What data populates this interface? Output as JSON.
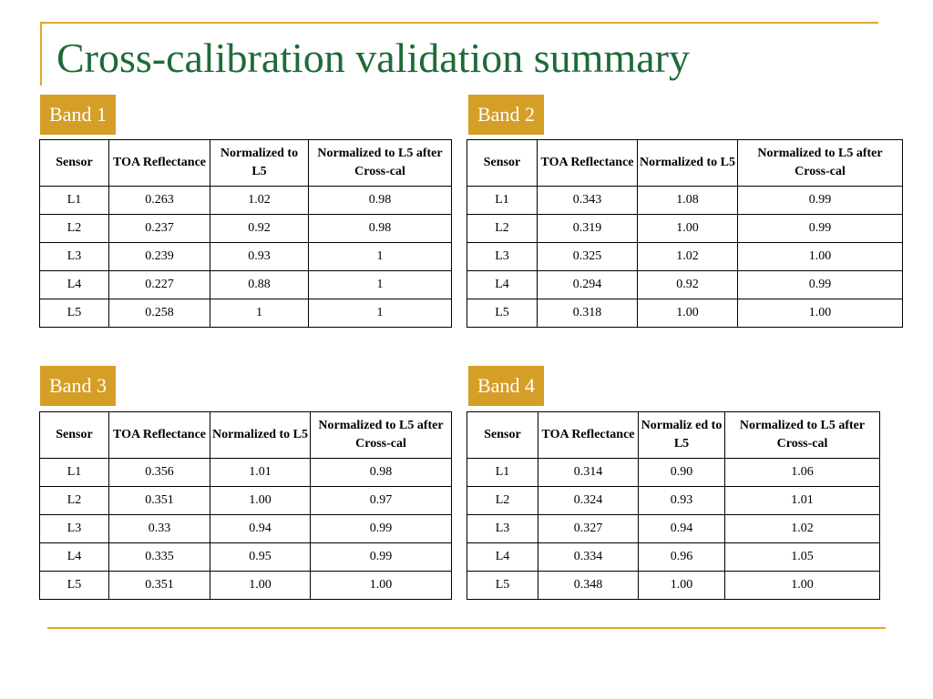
{
  "slide": {
    "title": "Cross-calibration validation summary"
  },
  "headers": {
    "sensor": "Sensor",
    "toa": "TOA Reflectance",
    "normalized": "Normalized to L5",
    "normalized_split": "Normaliz ed to L5",
    "after": "Normalized to L5 after Cross-cal"
  },
  "bands": [
    {
      "label": "Band 1",
      "rows": [
        {
          "sensor": "L1",
          "toa": "0.263",
          "norm": "1.02",
          "after": "0.98"
        },
        {
          "sensor": "L2",
          "toa": "0.237",
          "norm": "0.92",
          "after": "0.98"
        },
        {
          "sensor": "L3",
          "toa": "0.239",
          "norm": "0.93",
          "after": "1"
        },
        {
          "sensor": "L4",
          "toa": "0.227",
          "norm": "0.88",
          "after": "1"
        },
        {
          "sensor": "L5",
          "toa": "0.258",
          "norm": "1",
          "after": "1"
        }
      ]
    },
    {
      "label": "Band 2",
      "rows": [
        {
          "sensor": "L1",
          "toa": "0.343",
          "norm": "1.08",
          "after": "0.99"
        },
        {
          "sensor": "L2",
          "toa": "0.319",
          "norm": "1.00",
          "after": "0.99"
        },
        {
          "sensor": "L3",
          "toa": "0.325",
          "norm": "1.02",
          "after": "1.00"
        },
        {
          "sensor": "L4",
          "toa": "0.294",
          "norm": "0.92",
          "after": "0.99"
        },
        {
          "sensor": "L5",
          "toa": "0.318",
          "norm": "1.00",
          "after": "1.00"
        }
      ]
    },
    {
      "label": "Band 3",
      "rows": [
        {
          "sensor": "L1",
          "toa": "0.356",
          "norm": "1.01",
          "after": "0.98"
        },
        {
          "sensor": "L2",
          "toa": "0.351",
          "norm": "1.00",
          "after": "0.97"
        },
        {
          "sensor": "L3",
          "toa": "0.33",
          "norm": "0.94",
          "after": "0.99"
        },
        {
          "sensor": "L4",
          "toa": "0.335",
          "norm": "0.95",
          "after": "0.99"
        },
        {
          "sensor": "L5",
          "toa": "0.351",
          "norm": "1.00",
          "after": "1.00"
        }
      ]
    },
    {
      "label": "Band 4",
      "rows": [
        {
          "sensor": "L1",
          "toa": "0.314",
          "norm": "0.90",
          "after": "1.06"
        },
        {
          "sensor": "L2",
          "toa": "0.324",
          "norm": "0.93",
          "after": "1.01"
        },
        {
          "sensor": "L3",
          "toa": "0.327",
          "norm": "0.94",
          "after": "1.02"
        },
        {
          "sensor": "L4",
          "toa": "0.334",
          "norm": "0.96",
          "after": "1.05"
        },
        {
          "sensor": "L5",
          "toa": "0.348",
          "norm": "1.00",
          "after": "1.00"
        }
      ]
    }
  ],
  "colors": {
    "title": "#1e6b38",
    "accent": "#d59e26",
    "rule": "#e0a92b",
    "label_text": "#ffffff"
  }
}
